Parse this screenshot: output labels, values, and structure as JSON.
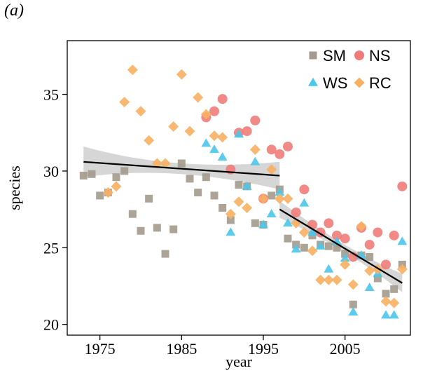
{
  "panel_label": "(a)",
  "chart_data": {
    "type": "scatter",
    "title": "",
    "xlabel": "year",
    "ylabel": "species",
    "xlim": [
      1971,
      2013
    ],
    "ylim": [
      19.3,
      38.5
    ],
    "xticks": [
      1975,
      1985,
      1995,
      2005
    ],
    "yticks": [
      20,
      25,
      30,
      35
    ],
    "grid": false,
    "legend_position": "top-right",
    "series": [
      {
        "name": "SM",
        "marker": "square",
        "color": "#a49a8d",
        "points": [
          [
            1973,
            29.7
          ],
          [
            1974,
            29.8
          ],
          [
            1975,
            28.4
          ],
          [
            1976,
            28.6
          ],
          [
            1977,
            29.6
          ],
          [
            1978,
            30.0
          ],
          [
            1979,
            27.2
          ],
          [
            1980,
            26.1
          ],
          [
            1981,
            28.2
          ],
          [
            1982,
            26.3
          ],
          [
            1983,
            24.6
          ],
          [
            1984,
            26.2
          ],
          [
            1985,
            30.5
          ],
          [
            1986,
            29.5
          ],
          [
            1987,
            28.6
          ],
          [
            1988,
            29.6
          ],
          [
            1989,
            28.4
          ],
          [
            1990,
            27.6
          ],
          [
            1991,
            26.8
          ],
          [
            1992,
            29.1
          ],
          [
            1993,
            29.0
          ],
          [
            1994,
            26.6
          ],
          [
            1995,
            26.5
          ],
          [
            1996,
            28.4
          ],
          [
            1997,
            28.8
          ],
          [
            1998,
            25.6
          ],
          [
            1999,
            25.2
          ],
          [
            2000,
            25.0
          ],
          [
            2001,
            25.8
          ],
          [
            2002,
            25.2
          ],
          [
            2003,
            25.1
          ],
          [
            2004,
            25.0
          ],
          [
            2005,
            24.6
          ],
          [
            2006,
            21.3
          ],
          [
            2007,
            24.5
          ],
          [
            2008,
            24.4
          ],
          [
            2009,
            23.0
          ],
          [
            2010,
            22.0
          ],
          [
            2011,
            22.3
          ],
          [
            2012,
            23.9
          ]
        ]
      },
      {
        "name": "NS",
        "marker": "circle",
        "color": "#f07c79",
        "points": [
          [
            1988,
            33.5
          ],
          [
            1989,
            33.9
          ],
          [
            1990,
            34.7
          ],
          [
            1991,
            30.1
          ],
          [
            1992,
            32.5
          ],
          [
            1993,
            32.6
          ],
          [
            1994,
            33.3
          ],
          [
            1995,
            28.2
          ],
          [
            1996,
            31.4
          ],
          [
            1997,
            31.1
          ],
          [
            1998,
            31.6
          ],
          [
            1999,
            27.3
          ],
          [
            2000,
            28.8
          ],
          [
            2001,
            26.5
          ],
          [
            2002,
            26.0
          ],
          [
            2003,
            26.6
          ],
          [
            2004,
            25.8
          ],
          [
            2005,
            25.6
          ],
          [
            2006,
            24.4
          ],
          [
            2007,
            26.3
          ],
          [
            2008,
            25.2
          ],
          [
            2009,
            26.0
          ],
          [
            2010,
            23.9
          ],
          [
            2011,
            25.8
          ],
          [
            2012,
            29.0
          ]
        ]
      },
      {
        "name": "WS",
        "marker": "triangle",
        "color": "#4bc7ea",
        "points": [
          [
            1988,
            31.8
          ],
          [
            1989,
            31.4
          ],
          [
            1990,
            30.9
          ],
          [
            1991,
            26.0
          ],
          [
            1992,
            32.4
          ],
          [
            1993,
            29.0
          ],
          [
            1994,
            30.6
          ],
          [
            1995,
            26.5
          ],
          [
            1996,
            27.2
          ],
          [
            1997,
            28.6
          ],
          [
            1998,
            26.6
          ],
          [
            1999,
            24.9
          ],
          [
            2000,
            27.9
          ],
          [
            2001,
            26.0
          ],
          [
            2002,
            25.1
          ],
          [
            2003,
            23.6
          ],
          [
            2004,
            25.4
          ],
          [
            2005,
            24.3
          ],
          [
            2006,
            20.8
          ],
          [
            2007,
            24.5
          ],
          [
            2008,
            22.4
          ],
          [
            2009,
            23.3
          ],
          [
            2010,
            20.6
          ],
          [
            2011,
            20.6
          ],
          [
            2012,
            25.4
          ]
        ]
      },
      {
        "name": "RC",
        "marker": "diamond",
        "color": "#f8b062",
        "points": [
          [
            1976,
            28.6
          ],
          [
            1977,
            29.0
          ],
          [
            1978,
            34.5
          ],
          [
            1979,
            36.6
          ],
          [
            1980,
            33.9
          ],
          [
            1981,
            32.0
          ],
          [
            1982,
            30.5
          ],
          [
            1983,
            30.5
          ],
          [
            1984,
            32.9
          ],
          [
            1985,
            36.3
          ],
          [
            1986,
            32.6
          ],
          [
            1987,
            34.8
          ],
          [
            1988,
            33.7
          ],
          [
            1989,
            32.3
          ],
          [
            1990,
            32.2
          ],
          [
            1991,
            27.2
          ],
          [
            1992,
            28.0
          ],
          [
            1993,
            27.6
          ],
          [
            1994,
            31.4
          ],
          [
            1995,
            28.2
          ],
          [
            1996,
            30.1
          ],
          [
            1997,
            28.2
          ],
          [
            1998,
            28.2
          ],
          [
            1999,
            26.6
          ],
          [
            2000,
            26.0
          ],
          [
            2001,
            24.8
          ],
          [
            2002,
            22.9
          ],
          [
            2003,
            22.9
          ],
          [
            2004,
            22.9
          ],
          [
            2005,
            23.9
          ],
          [
            2006,
            22.6
          ],
          [
            2007,
            26.4
          ],
          [
            2008,
            23.5
          ],
          [
            2009,
            23.6
          ],
          [
            2010,
            21.5
          ],
          [
            2011,
            21.4
          ],
          [
            2012,
            23.6
          ]
        ]
      }
    ],
    "trend_lines": [
      {
        "x": [
          1973,
          1997
        ],
        "y": [
          30.6,
          29.7
        ],
        "ci_half_width": [
          1.0,
          0.9
        ],
        "ci_mid_half_width": 0.35,
        "color": "#000000"
      },
      {
        "x": [
          1997,
          2012
        ],
        "y": [
          27.5,
          22.7
        ],
        "ci_half_width": [
          0.55,
          0.6
        ],
        "ci_mid_half_width": 0.25,
        "color": "#000000"
      }
    ],
    "ci_color": "#c8c8c8"
  }
}
